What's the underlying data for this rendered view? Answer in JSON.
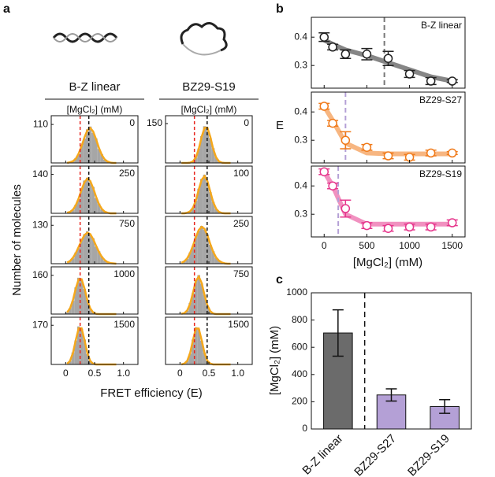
{
  "chart_data": [
    {
      "type": "histogram",
      "label": "a",
      "annotation_title": "[MgCl₂] (mM)",
      "xlabel": "FRET efficiency (E)",
      "ylabel": "Number of molecules",
      "xlim": [
        -0.25,
        1.25
      ],
      "xticks": [
        0,
        0.5,
        {
          "value": 1,
          "label": "1.0"
        }
      ],
      "bins": [
        0,
        0.05,
        0.1,
        0.15,
        0.2,
        0.25,
        0.3,
        0.35,
        0.4,
        0.45,
        0.5,
        0.55,
        0.6,
        0.65,
        0.7,
        0.75,
        0.8,
        0.85,
        0.9
      ],
      "bar_color": "#a6a6a6",
      "fit_color": "#f5a81c",
      "ref_colors": [
        "#e8261f",
        "#111111"
      ],
      "columns": [
        {
          "title": "B-Z linear",
          "ref_lines": [
            0.25,
            0.4
          ],
          "panels": [
            {
              "annotation": "0",
              "ylim": [
                0,
                135
              ],
              "yticks": [
                110
              ],
              "counts": [
                0,
                3,
                6,
                14,
                25,
                50,
                70,
                96,
                104,
                86,
                70,
                40,
                25,
                9,
                5,
                1,
                0,
                0
              ],
              "fit": [
                0,
                2,
                5,
                12,
                27,
                48,
                73,
                93,
                100,
                90,
                68,
                43,
                23,
                10,
                4,
                1,
                0,
                0
              ]
            },
            {
              "annotation": "250",
              "ylim": [
                0,
                170
              ],
              "yticks": [
                140
              ],
              "counts": [
                1,
                6,
                11,
                31,
                50,
                88,
                118,
                128,
                110,
                95,
                55,
                35,
                14,
                7,
                3,
                1,
                0,
                0
              ],
              "fit": [
                2,
                5,
                13,
                29,
                54,
                85,
                112,
                125,
                116,
                91,
                60,
                33,
                16,
                6,
                2,
                0,
                0,
                0
              ]
            },
            {
              "annotation": "750",
              "ylim": [
                0,
                160
              ],
              "yticks": [
                130
              ],
              "counts": [
                3,
                10,
                18,
                38,
                55,
                82,
                100,
                110,
                98,
                86,
                58,
                42,
                25,
                10,
                6,
                2,
                1,
                0
              ],
              "fit": [
                4,
                9,
                20,
                36,
                57,
                79,
                97,
                105,
                100,
                83,
                61,
                40,
                23,
                12,
                5,
                2,
                1,
                0
              ]
            },
            {
              "annotation": "1000",
              "ylim": [
                0,
                195
              ],
              "yticks": [
                160
              ],
              "counts": [
                6,
                25,
                55,
                110,
                150,
                140,
                104,
                60,
                20,
                8,
                2,
                0,
                0,
                0,
                0,
                0,
                0,
                0
              ],
              "fit": [
                7,
                23,
                57,
                106,
                144,
                144,
                106,
                57,
                23,
                7,
                1,
                0,
                0,
                0,
                0,
                0,
                0,
                0
              ]
            },
            {
              "annotation": "1500",
              "ylim": [
                0,
                205
              ],
              "yticks": [
                170
              ],
              "counts": [
                2,
                14,
                52,
                104,
                165,
                155,
                108,
                46,
                16,
                3,
                0,
                0,
                0,
                0,
                0,
                0,
                0,
                0
              ],
              "fit": [
                3,
                15,
                49,
                106,
                157,
                157,
                106,
                49,
                15,
                3,
                0,
                0,
                0,
                0,
                0,
                0,
                0,
                0
              ]
            }
          ]
        },
        {
          "title": "BZ29-S19",
          "ref_lines": [
            0.25,
            0.47
          ],
          "panels": [
            {
              "annotation": "0",
              "ylim": [
                0,
                180
              ],
              "yticks": [
                150
              ],
              "counts": [
                0,
                0,
                0,
                2,
                5,
                20,
                55,
                102,
                140,
                130,
                95,
                56,
                22,
                5,
                1,
                0,
                0,
                0
              ],
              "fit": [
                0,
                0,
                0,
                1,
                6,
                21,
                53,
                99,
                134,
                134,
                99,
                53,
                21,
                6,
                1,
                0,
                0,
                0
              ]
            },
            {
              "annotation": "100",
              "ylim": [
                0,
                165
              ],
              "yticks": [],
              "counts": [
                0,
                1,
                2,
                6,
                20,
                44,
                86,
                120,
                135,
                108,
                74,
                40,
                15,
                6,
                1,
                0,
                0,
                0
              ],
              "fit": [
                0,
                0,
                2,
                7,
                19,
                45,
                83,
                117,
                130,
                112,
                75,
                39,
                16,
                5,
                1,
                0,
                0,
                0
              ]
            },
            {
              "annotation": "250",
              "ylim": [
                0,
                160
              ],
              "yticks": [],
              "counts": [
                2,
                9,
                16,
                38,
                60,
                94,
                112,
                128,
                115,
                99,
                64,
                42,
                20,
                11,
                3,
                1,
                0,
                0
              ],
              "fit": [
                3,
                8,
                18,
                36,
                61,
                90,
                114,
                125,
                118,
                96,
                66,
                40,
                21,
                10,
                4,
                1,
                0,
                0
              ]
            },
            {
              "annotation": "750",
              "ylim": [
                0,
                170
              ],
              "yticks": [],
              "counts": [
                0,
                4,
                12,
                40,
                75,
                122,
                140,
                110,
                70,
                28,
                11,
                2,
                0,
                0,
                0,
                0,
                0,
                0
              ],
              "fit": [
                1,
                3,
                13,
                37,
                77,
                119,
                135,
                112,
                68,
                31,
                10,
                2,
                0,
                0,
                0,
                0,
                0,
                0
              ]
            },
            {
              "annotation": "1500",
              "ylim": [
                0,
                175
              ],
              "yticks": [],
              "counts": [
                0,
                2,
                14,
                40,
                92,
                138,
                130,
                88,
                44,
                12,
                3,
                0,
                0,
                0,
                0,
                0,
                0,
                0
              ],
              "fit": [
                0,
                3,
                13,
                42,
                90,
                133,
                133,
                90,
                42,
                13,
                3,
                0,
                0,
                0,
                0,
                0,
                0,
                0
              ]
            }
          ]
        }
      ]
    },
    {
      "type": "scatter",
      "label": "b",
      "xlabel": "[MgCl₂] (mM)",
      "ylabel": "E",
      "xlim": [
        -150,
        1650
      ],
      "xticks": [
        0,
        500,
        1000,
        1500
      ],
      "ylim": [
        0.22,
        0.47
      ],
      "yticks": [
        0.3,
        0.4
      ],
      "x": [
        0,
        100,
        250,
        500,
        750,
        1000,
        1250,
        1500
      ],
      "series": [
        {
          "name": "B-Z linear",
          "color": "#222222",
          "threshold": 705,
          "threshold_color": "#777777",
          "values": [
            0.4,
            0.365,
            0.34,
            0.34,
            0.325,
            0.27,
            0.245,
            0.245
          ],
          "errors": [
            0.015,
            0.01,
            0.015,
            0.02,
            0.025,
            0.012,
            0.012,
            0.005
          ],
          "fit": [
            0.39,
            0.375,
            0.355,
            0.335,
            0.31,
            0.285,
            0.26,
            0.245
          ]
        },
        {
          "name": "BZ29-S27",
          "color": "#f07a1a",
          "threshold": 250,
          "threshold_color": "#b4a0d6",
          "values": [
            0.42,
            0.36,
            0.3,
            0.275,
            0.245,
            0.24,
            0.255,
            0.255
          ],
          "errors": [
            0.01,
            0.01,
            0.03,
            0.01,
            0.01,
            0.01,
            0.01,
            0.005
          ],
          "fit": [
            0.42,
            0.37,
            0.29,
            0.255,
            0.252,
            0.252,
            0.252,
            0.252
          ]
        },
        {
          "name": "BZ29-S19",
          "color": "#e6368c",
          "threshold": 165,
          "threshold_color": "#b4a0d6",
          "values": [
            0.45,
            0.4,
            0.32,
            0.26,
            0.25,
            0.255,
            0.255,
            0.27
          ],
          "errors": [
            0.01,
            0.01,
            0.03,
            0.01,
            0.01,
            0.01,
            0.01,
            0.01
          ],
          "fit": [
            0.45,
            0.4,
            0.3,
            0.265,
            0.265,
            0.265,
            0.265,
            0.265
          ]
        }
      ]
    },
    {
      "type": "bar",
      "label": "c",
      "ylabel": "[MgCl₂] (mM)",
      "categories": [
        "B-Z linear",
        "BZ29-S27",
        "BZ29-S19"
      ],
      "values": [
        705,
        250,
        165
      ],
      "errors": [
        170,
        45,
        50
      ],
      "colors": [
        "#6b6b6b",
        "#b4a0d6",
        "#b4a0d6"
      ],
      "ylim": [
        0,
        1000
      ],
      "yticks": [
        0,
        200,
        400,
        600,
        800,
        1000
      ]
    }
  ]
}
